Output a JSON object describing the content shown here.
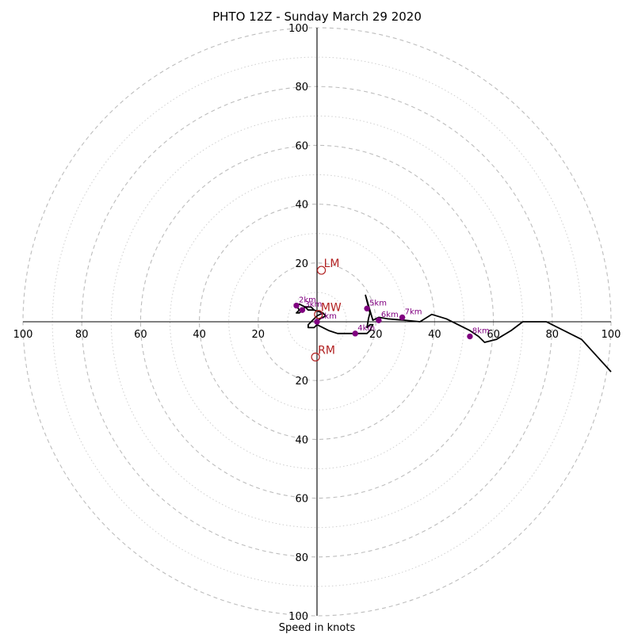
{
  "chart_data": {
    "type": "hodograph",
    "title": "PHTO 12Z - Sunday March 29 2020",
    "xlabel": "Speed in knots",
    "units": "knots",
    "range": [
      -100,
      100
    ],
    "major_rings": [
      20,
      40,
      60,
      80,
      100
    ],
    "minor_rings": [
      10,
      30,
      50,
      70,
      90
    ],
    "tick_labels": {
      "x_left": [
        "100",
        "80",
        "60",
        "40",
        "20"
      ],
      "x_right": [
        "20",
        "40",
        "60",
        "80",
        "100"
      ],
      "y_top": [
        "100",
        "80",
        "60",
        "40",
        "20"
      ],
      "y_bottom": [
        "20",
        "40",
        "60",
        "80",
        "100"
      ]
    },
    "x_tick_values": [
      -100,
      -80,
      -60,
      -40,
      -20,
      20,
      40,
      60,
      80,
      100
    ],
    "y_tick_values": [
      100,
      80,
      60,
      40,
      20,
      -20,
      -40,
      -60,
      -80,
      -100
    ],
    "grid": true,
    "line_color": "#000000",
    "height_label_color": "#800080",
    "motion_color": "#b22222",
    "hodograph": {
      "u": [
        0,
        1,
        3,
        2,
        -1,
        -3,
        -4,
        -6,
        -7,
        -6,
        -7,
        -6,
        -5,
        -4,
        -2,
        -1,
        2,
        0,
        -1,
        -2,
        -3,
        -3,
        -1,
        0,
        4,
        7,
        13,
        17,
        18,
        18.5,
        19,
        18,
        17,
        17.5,
        18,
        17.5,
        17,
        16.5,
        19,
        21,
        24,
        30,
        35,
        39,
        44,
        48,
        52,
        55,
        57,
        61,
        66,
        70,
        78,
        90,
        100
      ],
      "v": [
        0,
        1,
        2,
        3,
        4,
        4,
        5,
        6,
        5.5,
        4,
        3,
        3,
        4,
        5,
        5,
        4,
        3,
        2,
        1,
        0,
        -1,
        -2,
        -2,
        -1,
        -3,
        -4,
        -4,
        -4,
        -3,
        -2,
        -1,
        -1,
        -2,
        1,
        3,
        5,
        7,
        9,
        0.5,
        1.5,
        1,
        0.5,
        0,
        2.5,
        1,
        -1,
        -3,
        -5,
        -7,
        -6,
        -3,
        0,
        0,
        -6,
        -17
      ]
    },
    "height_markers": [
      {
        "label": "1km",
        "u": 0,
        "v": 0
      },
      {
        "label": "2km",
        "u": -7,
        "v": 5.5
      },
      {
        "label": "3km",
        "u": -5,
        "v": 4
      },
      {
        "label": "4km",
        "u": 13,
        "v": -4
      },
      {
        "label": "5km",
        "u": 17,
        "v": 4.5
      },
      {
        "label": "6km",
        "u": 21,
        "v": 0.5
      },
      {
        "label": "7km",
        "u": 29,
        "v": 1.5
      },
      {
        "label": "8km",
        "u": 52,
        "v": -5
      }
    ],
    "storm_motion": [
      {
        "label": "LM",
        "u": 1.5,
        "v": 17.5
      },
      {
        "label": "MW",
        "u": 0.5,
        "v": 2.5
      },
      {
        "label": "RM",
        "u": -0.5,
        "v": -12
      }
    ]
  }
}
